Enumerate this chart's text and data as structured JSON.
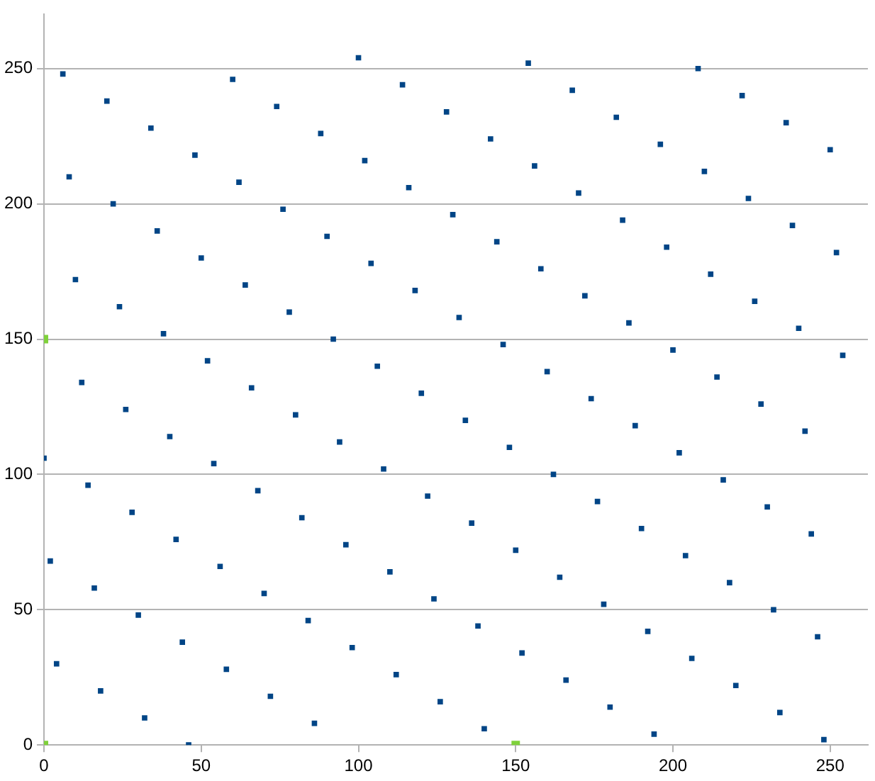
{
  "chart_data": {
    "type": "scatter",
    "xlim": [
      0,
      262
    ],
    "ylim": [
      0,
      270
    ],
    "xticks": [
      0,
      50,
      100,
      150,
      200,
      250
    ],
    "yticks": [
      0,
      50,
      100,
      150,
      200,
      250
    ],
    "grid": "y",
    "legend": false,
    "marker": "square",
    "series": [
      {
        "color": "#004586",
        "x": [
          0,
          2,
          4,
          6,
          8,
          10,
          12,
          14,
          16,
          18,
          20,
          22,
          24,
          26,
          28,
          30,
          32,
          34,
          36,
          38,
          40,
          42,
          44,
          46,
          48,
          50,
          52,
          54,
          56,
          58,
          60,
          62,
          64,
          66,
          68,
          70,
          72,
          74,
          76,
          78,
          80,
          82,
          84,
          86,
          88,
          90,
          92,
          94,
          96,
          98,
          100,
          102,
          104,
          106,
          108,
          110,
          112,
          114,
          116,
          118,
          120,
          122,
          124,
          126,
          128,
          130,
          132,
          134,
          136,
          138,
          140,
          142,
          144,
          146,
          148,
          150,
          152,
          154,
          156,
          158,
          160,
          162,
          164,
          166,
          168,
          170,
          172,
          174,
          176,
          178,
          180,
          182,
          184,
          186,
          188,
          190,
          192,
          194,
          196,
          198,
          200,
          202,
          204,
          206,
          208,
          210,
          212,
          214,
          216,
          218,
          220,
          222,
          224,
          226,
          228,
          230,
          232,
          234,
          236,
          238,
          240,
          242,
          244,
          246,
          248,
          250,
          252,
          254
        ],
        "values": [
          106,
          68,
          30,
          248,
          210,
          172,
          134,
          96,
          58,
          20,
          238,
          200,
          162,
          124,
          86,
          48,
          10,
          228,
          190,
          152,
          114,
          76,
          38,
          0,
          218,
          180,
          142,
          104,
          66,
          28,
          246,
          208,
          170,
          132,
          94,
          56,
          18,
          236,
          198,
          160,
          122,
          84,
          46,
          8,
          226,
          188,
          150,
          112,
          74,
          36,
          254,
          216,
          178,
          140,
          102,
          64,
          26,
          244,
          206,
          168,
          130,
          92,
          54,
          16,
          234,
          196,
          158,
          120,
          82,
          44,
          6,
          224,
          186,
          148,
          110,
          72,
          34,
          252,
          214,
          176,
          138,
          100,
          62,
          24,
          242,
          204,
          166,
          128,
          90,
          52,
          14,
          232,
          194,
          156,
          118,
          80,
          42,
          4,
          222,
          184,
          146,
          108,
          70,
          32,
          250,
          212,
          174,
          136,
          98,
          60,
          22,
          240,
          202,
          164,
          126,
          88,
          50,
          12,
          230,
          192,
          154,
          116,
          78,
          40,
          2,
          220,
          182,
          144
        ]
      },
      {
        "color": "#7fd13b",
        "x": [
          0,
          0,
          150
        ],
        "values": [
          0,
          150,
          0
        ]
      }
    ]
  }
}
